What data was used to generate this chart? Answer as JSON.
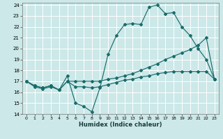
{
  "xlabel": "Humidex (Indice chaleur)",
  "bg_color": "#cce8e8",
  "grid_color": "#ffffff",
  "line_color": "#1a6b6b",
  "xlim": [
    -0.5,
    23.5
  ],
  "ylim": [
    14,
    24.2
  ],
  "xticks": [
    0,
    1,
    2,
    3,
    4,
    5,
    6,
    7,
    8,
    9,
    10,
    11,
    12,
    13,
    14,
    15,
    16,
    17,
    18,
    19,
    20,
    21,
    22,
    23
  ],
  "yticks": [
    14,
    15,
    16,
    17,
    18,
    19,
    20,
    21,
    22,
    23,
    24
  ],
  "line1_x": [
    0,
    1,
    2,
    3,
    4,
    5,
    6,
    7,
    8,
    9,
    10,
    11,
    12,
    13,
    14,
    15,
    16,
    17,
    18,
    19,
    20,
    21,
    22,
    23
  ],
  "line1_y": [
    17.0,
    16.6,
    16.4,
    16.6,
    16.2,
    17.5,
    15.0,
    14.7,
    14.2,
    16.4,
    19.5,
    21.2,
    22.2,
    22.3,
    22.2,
    23.8,
    24.0,
    23.2,
    23.3,
    22.0,
    21.2,
    20.0,
    19.0,
    17.2
  ],
  "line2_x": [
    0,
    1,
    2,
    3,
    4,
    5,
    6,
    7,
    8,
    9,
    10,
    11,
    12,
    13,
    14,
    15,
    16,
    17,
    18,
    19,
    20,
    21,
    22,
    23
  ],
  "line2_y": [
    17.0,
    16.5,
    16.3,
    16.5,
    16.2,
    17.0,
    17.0,
    17.0,
    17.0,
    17.0,
    17.2,
    17.3,
    17.5,
    17.7,
    18.0,
    18.3,
    18.6,
    19.0,
    19.3,
    19.6,
    19.9,
    20.3,
    21.0,
    17.2
  ],
  "line3_x": [
    0,
    1,
    2,
    3,
    4,
    5,
    6,
    7,
    8,
    9,
    10,
    11,
    12,
    13,
    14,
    15,
    16,
    17,
    18,
    19,
    20,
    21,
    22,
    23
  ],
  "line3_y": [
    17.0,
    16.6,
    16.4,
    16.6,
    16.2,
    17.0,
    16.5,
    16.5,
    16.4,
    16.5,
    16.7,
    16.9,
    17.1,
    17.2,
    17.4,
    17.5,
    17.7,
    17.8,
    17.9,
    17.9,
    17.9,
    17.9,
    17.9,
    17.2
  ]
}
